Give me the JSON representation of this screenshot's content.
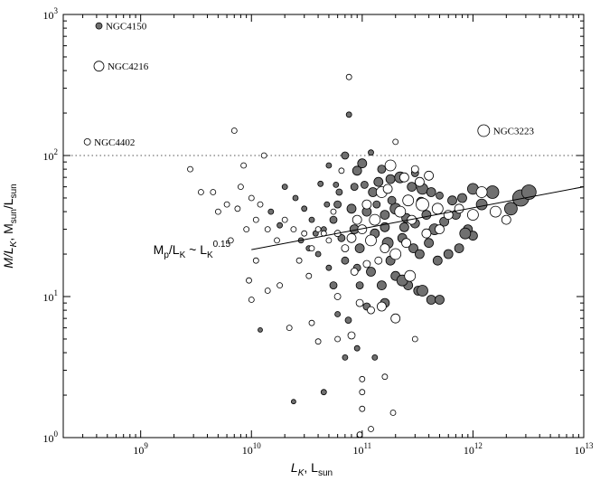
{
  "chart_data": {
    "type": "scatter",
    "title": "",
    "x_scale": "log",
    "y_scale": "log",
    "xlim": [
      200000000,
      10000000000000
    ],
    "ylim": [
      1,
      1000
    ],
    "x_ticks": [
      {
        "value": 1000000000,
        "base": "10",
        "exp": "9"
      },
      {
        "value": 10000000000,
        "base": "10",
        "exp": "10"
      },
      {
        "value": 100000000000,
        "base": "10",
        "exp": "11"
      },
      {
        "value": 1000000000000,
        "base": "10",
        "exp": "12"
      },
      {
        "value": 10000000000000,
        "base": "10",
        "exp": "13"
      }
    ],
    "y_ticks": [
      {
        "value": 1,
        "base": "10",
        "exp": "0"
      },
      {
        "value": 10,
        "base": "10",
        "exp": "1"
      },
      {
        "value": 100,
        "base": "10",
        "exp": "2"
      },
      {
        "value": 1000,
        "base": "10",
        "exp": "3"
      }
    ],
    "xlabel": {
      "main": "L",
      "sub1": "K",
      "sep": ", L",
      "sub2": "sun"
    },
    "ylabel": {
      "m": "M",
      "slash": "/L",
      "k": "K",
      "sep": ", M",
      "sun1": "sun",
      "slash2": "/L",
      "sun2": "sun"
    },
    "reference_line": {
      "y": 100,
      "style": "dotted"
    },
    "fit_line": {
      "x_start": 10000000000,
      "y_start": 21.5,
      "x_end": 10000000000000,
      "y_end": 60,
      "label": {
        "mp": "M",
        "p": "p",
        "mid": "/L",
        "k1": "K",
        "tilde": " ~ L",
        "k2": "K",
        "exp": "0.15"
      },
      "label_at": {
        "x": 1300000000,
        "y": 20
      }
    },
    "marker_styles": {
      "filled": {
        "fill": "#707070",
        "stroke": "#000000"
      },
      "open": {
        "fill": "#ffffff",
        "stroke": "#000000"
      }
    },
    "annotations": [
      {
        "text": "NGC4150",
        "x": 420000000,
        "y": 830,
        "size": 3.5,
        "style": "filled"
      },
      {
        "text": "NGC4216",
        "x": 420000000,
        "y": 430,
        "size": 5.5,
        "style": "open"
      },
      {
        "text": "NGC4402",
        "x": 330000000,
        "y": 125,
        "size": 3.5,
        "style": "open"
      },
      {
        "text": "NGC3223",
        "x": 1250000000000,
        "y": 150,
        "size": 6.5,
        "style": "open"
      }
    ],
    "series": [
      {
        "style": "filled",
        "points": [
          [
            76000000000,
            195,
            3
          ],
          [
            70000000000,
            100,
            4
          ],
          [
            100000000000,
            88,
            5
          ],
          [
            150000000000,
            80,
            4.5
          ],
          [
            50000000000,
            85,
            3
          ],
          [
            120000000000,
            105,
            3
          ],
          [
            90000000000,
            78,
            5
          ],
          [
            140000000000,
            65,
            5
          ],
          [
            180000000000,
            68,
            5
          ],
          [
            220000000000,
            70,
            6
          ],
          [
            280000000000,
            60,
            5
          ],
          [
            350000000000,
            58,
            6
          ],
          [
            420000000000,
            55,
            5
          ],
          [
            500000000000,
            52,
            4
          ],
          [
            650000000000,
            48,
            5
          ],
          [
            800000000000,
            50,
            5
          ],
          [
            1000000000000,
            58,
            6
          ],
          [
            1500000000000,
            55,
            7
          ],
          [
            2200000000000,
            42,
            7
          ],
          [
            2700000000000,
            50,
            9
          ],
          [
            3200000000000,
            55,
            8
          ],
          [
            60000000000,
            45,
            4
          ],
          [
            80000000000,
            42,
            5
          ],
          [
            110000000000,
            40,
            5
          ],
          [
            160000000000,
            38,
            5
          ],
          [
            200000000000,
            42,
            6
          ],
          [
            250000000000,
            36,
            5
          ],
          [
            300000000000,
            33,
            5
          ],
          [
            380000000000,
            38,
            5
          ],
          [
            450000000000,
            30,
            6
          ],
          [
            550000000000,
            34,
            5
          ],
          [
            700000000000,
            38,
            5
          ],
          [
            900000000000,
            30,
            5
          ],
          [
            1000000000000,
            27,
            5
          ],
          [
            45000000000,
            30,
            3
          ],
          [
            55000000000,
            35,
            4
          ],
          [
            65000000000,
            26,
            4
          ],
          [
            85000000000,
            30,
            5
          ],
          [
            95000000000,
            22,
            5
          ],
          [
            130000000000,
            28,
            5
          ],
          [
            170000000000,
            24,
            6
          ],
          [
            230000000000,
            26,
            5
          ],
          [
            290000000000,
            22,
            5
          ],
          [
            330000000000,
            20,
            5
          ],
          [
            400000000000,
            24,
            5
          ],
          [
            480000000000,
            18,
            5
          ],
          [
            600000000000,
            20,
            5
          ],
          [
            750000000000,
            22,
            5
          ],
          [
            40000000000,
            20,
            3
          ],
          [
            50000000000,
            16,
            3
          ],
          [
            70000000000,
            18,
            4
          ],
          [
            90000000000,
            16,
            4
          ],
          [
            120000000000,
            15,
            5
          ],
          [
            150000000000,
            12,
            5
          ],
          [
            200000000000,
            14,
            5
          ],
          [
            260000000000,
            12,
            5
          ],
          [
            320000000000,
            11,
            5
          ],
          [
            420000000000,
            9.5,
            5
          ],
          [
            20000000000,
            60,
            3
          ],
          [
            25000000000,
            50,
            3
          ],
          [
            30000000000,
            42,
            3
          ],
          [
            35000000000,
            35,
            3
          ],
          [
            28000000000,
            25,
            3
          ],
          [
            33000000000,
            22,
            3
          ],
          [
            38000000000,
            28,
            3
          ],
          [
            15000000000,
            40,
            3
          ],
          [
            18000000000,
            32,
            3
          ],
          [
            12000000000,
            5.8,
            2.5
          ],
          [
            24000000000,
            1.8,
            2.5
          ],
          [
            45000000000,
            2.1,
            3
          ],
          [
            70000000000,
            3.7,
            3
          ],
          [
            90000000000,
            4.3,
            3
          ],
          [
            130000000000,
            3.7,
            3
          ],
          [
            60000000000,
            7.5,
            3
          ],
          [
            75000000000,
            6.8,
            3.5
          ],
          [
            110000000000,
            8.5,
            4
          ],
          [
            160000000000,
            9,
            5
          ],
          [
            230000000000,
            13,
            6
          ],
          [
            350000000000,
            11,
            6
          ],
          [
            500000000000,
            9.5,
            5
          ],
          [
            850000000000,
            28,
            6
          ],
          [
            1200000000000,
            45,
            6
          ],
          [
            55000000000,
            12,
            4
          ],
          [
            48000000000,
            45,
            3
          ],
          [
            58000000000,
            62,
            3
          ],
          [
            105000000000,
            62,
            4
          ],
          [
            135000000000,
            45,
            4
          ],
          [
            62000000000,
            55,
            3.5
          ],
          [
            42000000000,
            63,
            3
          ],
          [
            95000000000,
            12,
            4
          ],
          [
            180000000000,
            18,
            5
          ],
          [
            260000000000,
            48,
            5
          ],
          [
            300000000000,
            75,
            4
          ],
          [
            340000000000,
            47,
            5
          ],
          [
            185000000000,
            48,
            4.5
          ],
          [
            125000000000,
            55,
            5
          ],
          [
            85000000000,
            60,
            4
          ],
          [
            160000000000,
            31,
            5
          ],
          [
            240000000000,
            31,
            5
          ]
        ]
      },
      {
        "style": "open",
        "points": [
          [
            200000000000,
            125,
            3
          ],
          [
            180000000000,
            85,
            6
          ],
          [
            240000000000,
            70,
            5
          ],
          [
            300000000000,
            80,
            4
          ],
          [
            400000000000,
            72,
            5
          ],
          [
            350000000000,
            45,
            7
          ],
          [
            260000000000,
            48,
            6
          ],
          [
            220000000000,
            40,
            6
          ],
          [
            280000000000,
            35,
            5
          ],
          [
            150000000000,
            55,
            6
          ],
          [
            130000000000,
            35,
            6
          ],
          [
            110000000000,
            45,
            5
          ],
          [
            90000000000,
            35,
            5
          ],
          [
            480000000000,
            42,
            6
          ],
          [
            600000000000,
            38,
            5
          ],
          [
            750000000000,
            42,
            5
          ],
          [
            1200000000000,
            55,
            6
          ],
          [
            1600000000000,
            40,
            6
          ],
          [
            2000000000000,
            35,
            5
          ],
          [
            80000000000,
            26,
            5
          ],
          [
            100000000000,
            30,
            5
          ],
          [
            120000000000,
            25,
            6
          ],
          [
            160000000000,
            22,
            5
          ],
          [
            200000000000,
            20,
            6
          ],
          [
            250000000000,
            24,
            5
          ],
          [
            70000000000,
            22,
            4
          ],
          [
            60000000000,
            28,
            3.5
          ],
          [
            50000000000,
            25,
            3
          ],
          [
            40000000000,
            30,
            3
          ],
          [
            35000000000,
            22,
            3
          ],
          [
            30000000000,
            28,
            3
          ],
          [
            24000000000,
            30,
            3
          ],
          [
            20000000000,
            35,
            3
          ],
          [
            17000000000,
            25,
            3
          ],
          [
            14000000000,
            30,
            3
          ],
          [
            12000000000,
            45,
            3
          ],
          [
            10000000000,
            50,
            3
          ],
          [
            8000000000,
            60,
            3
          ],
          [
            6000000000,
            45,
            3
          ],
          [
            5000000000,
            40,
            3
          ],
          [
            4500000000,
            55,
            3
          ],
          [
            3500000000,
            55,
            3
          ],
          [
            2800000000,
            80,
            3
          ],
          [
            7000000000,
            150,
            3
          ],
          [
            8500000000,
            85,
            3
          ],
          [
            11000000000,
            35,
            3
          ],
          [
            13000000000,
            100,
            3
          ],
          [
            7500000000,
            42,
            3
          ],
          [
            9000000000,
            30,
            3
          ],
          [
            6500000000,
            25,
            3
          ],
          [
            11000000000,
            18,
            3
          ],
          [
            9500000000,
            13,
            3
          ],
          [
            10000000000,
            9.5,
            3
          ],
          [
            14000000000,
            11,
            3
          ],
          [
            18000000000,
            12,
            3
          ],
          [
            22000000000,
            6,
            3
          ],
          [
            35000000000,
            6.5,
            3
          ],
          [
            40000000000,
            4.8,
            3
          ],
          [
            60000000000,
            5,
            3
          ],
          [
            80000000000,
            5.3,
            4
          ],
          [
            95000000000,
            9,
            4
          ],
          [
            120000000000,
            8,
            4
          ],
          [
            150000000000,
            8.5,
            5
          ],
          [
            200000000000,
            7,
            5
          ],
          [
            270000000000,
            14,
            6
          ],
          [
            100000000000,
            2.6,
            3
          ],
          [
            100000000000,
            2.1,
            3
          ],
          [
            100000000000,
            1.6,
            3
          ],
          [
            120000000000,
            1.15,
            3
          ],
          [
            95000000000,
            1.05,
            3
          ],
          [
            190000000000,
            1.5,
            3
          ],
          [
            160000000000,
            2.7,
            3
          ],
          [
            300000000000,
            5,
            3
          ],
          [
            76000000000,
            360,
            3
          ],
          [
            65000000000,
            78,
            3
          ],
          [
            55000000000,
            40,
            3
          ],
          [
            45000000000,
            28,
            3
          ],
          [
            170000000000,
            58,
            5
          ],
          [
            330000000000,
            65,
            5
          ],
          [
            380000000000,
            28,
            5
          ],
          [
            500000000000,
            30,
            5
          ],
          [
            1000000000000,
            38,
            6
          ],
          [
            140000000000,
            18,
            4
          ],
          [
            110000000000,
            17,
            4
          ],
          [
            85000000000,
            15,
            4
          ],
          [
            60000000000,
            10,
            3.5
          ],
          [
            33000000000,
            14,
            3
          ],
          [
            27000000000,
            18,
            3
          ]
        ]
      }
    ]
  }
}
